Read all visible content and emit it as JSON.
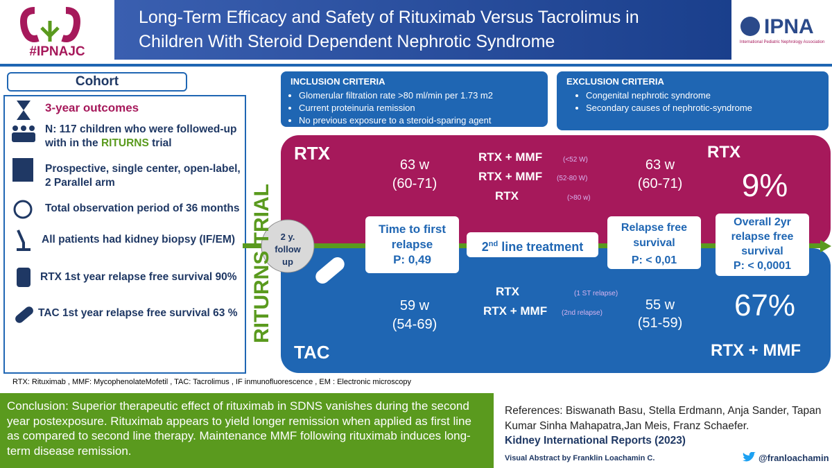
{
  "header": {
    "hashtag": "#IPNAJC",
    "title_line1": "Long-Term Efficacy and Safety of Rituximab Versus Tacrolimus in",
    "title_line2": "Children With Steroid Dependent Nephrotic Syndrome",
    "org": "IPNA",
    "org_full": "International Pediatric Nephrology Association"
  },
  "cohort": {
    "heading": "Cohort",
    "outcomes": "3-year outcomes",
    "n_text": "N: 117 children who were followed-up with in the ",
    "trial_name": "RITURNS",
    "n_text_end": " trial",
    "design": "Prospective, single center, open-label, 2 Parallel arm",
    "period": "Total observation period of 36 months",
    "biopsy": "All patients had kidney biopsy  (IF/EM)",
    "rtx_rfs": "RTX 1st year relapse free survival  90%",
    "tac_rfs": "TAC 1st year relapse free survival  63 %"
  },
  "inclusion": {
    "title": "INCLUSION CRITERIA",
    "items": [
      "Glomerular filtration rate >80 ml/min per 1.73 m2",
      "Current proteinuria remission",
      "No previous exposure to a steroid-sparing agent"
    ]
  },
  "exclusion": {
    "title": "EXCLUSION CRITERIA",
    "items": [
      "Congenital nephrotic syndrome",
      "Secondary causes of nephrotic-syndrome"
    ]
  },
  "trial_label": "RITURNS TRIAL",
  "rtx": {
    "label": "RTX",
    "time_to_relapse": "63 w",
    "time_range": "(60-71)",
    "treatments": [
      {
        "name": "RTX + MMF",
        "note": "(<52 W)"
      },
      {
        "name": "RTX + MMF",
        "note": "(52-80 W)"
      },
      {
        "name": "RTX",
        "note": "(>80 w)"
      }
    ],
    "rfs": "63 w",
    "rfs_range": "(60-71)",
    "overall_label": "RTX",
    "overall_value": "9%"
  },
  "middle": {
    "follow_up": "2 y. follow up",
    "time_box_title": "Time to first relapse",
    "time_box_p": "P: 0,49",
    "second_line_num": "2",
    "second_line_sup": "nd",
    "second_line_text": " line treatment",
    "rfs_box_title": "Relapse free survival",
    "rfs_box_p": "P: < 0,01",
    "overall_box_title": "Overall 2yr relapse free survival",
    "overall_box_p": "P: < 0,0001"
  },
  "tac": {
    "label": "TAC",
    "time_to_relapse": "59 w",
    "time_range": "(54-69)",
    "treatments": [
      {
        "name": "RTX",
        "note": "(1 ST relapse)"
      },
      {
        "name": "RTX + MMF",
        "note": "(2nd relapse)"
      }
    ],
    "rfs": "55 w",
    "rfs_range": "(51-59)",
    "overall_value": "67%",
    "overall_label": "RTX + MMF"
  },
  "footnote": "RTX: Rituximab , MMF:  MycophenolateMofetil , TAC: Tacrolimus , IF inmunofluorescence , EM : Electronic microscopy",
  "conclusion": "Conclusion: Superior therapeutic effect of rituximab in SDNS vanishes during the second year postexposure. Rituximab appears to yield longer remission when applied as first line as compared to second line therapy. Maintenance MMF following rituximab induces long-term disease remission.",
  "references": {
    "text": "References: Biswanath Basu, Stella Erdmann, Anja Sander, Tapan Kumar Sinha Mahapatra,Jan Meis, Franz Schaefer.",
    "journal": "Kidney International Reports (2023)",
    "credit": "Visual Abstract by Franklin Loachamin C.",
    "handle": "@franloachamin"
  }
}
